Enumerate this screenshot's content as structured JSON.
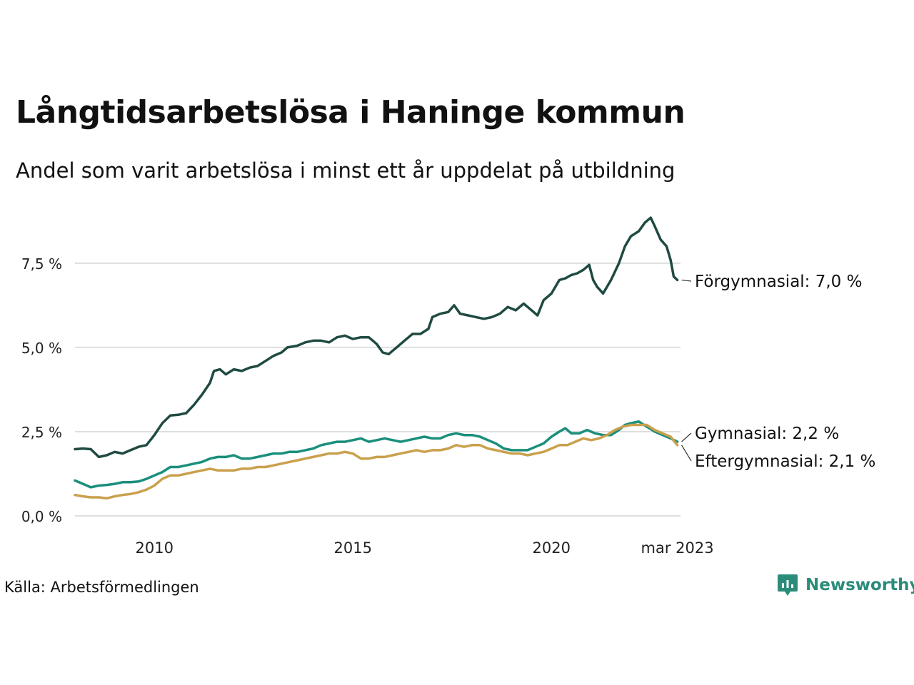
{
  "title": "Långtidsarbetslösa i Haninge kommun",
  "subtitle": "Andel som varit arbetslösa i minst ett år uppdelat på utbildning",
  "source": "Källa: Arbetsförmedlingen",
  "brand": {
    "name": "Newsworthy",
    "icon": "newsworthy-logo-icon",
    "color": "#2c8c7a"
  },
  "chart_data": {
    "type": "line",
    "ylim": [
      0,
      9
    ],
    "xlim": [
      2008.0,
      2023.25
    ],
    "yticks": [
      {
        "value": 0.0,
        "label": "0,0 %"
      },
      {
        "value": 2.5,
        "label": "2,5 %"
      },
      {
        "value": 5.0,
        "label": "5,0 %"
      },
      {
        "value": 7.5,
        "label": "7,5 %"
      }
    ],
    "xticks": [
      {
        "value": 2010.0,
        "label": "2010"
      },
      {
        "value": 2015.0,
        "label": "2015"
      },
      {
        "value": 2020.0,
        "label": "2020"
      },
      {
        "value": 2023.17,
        "label": "mar 2023"
      }
    ],
    "grid": true,
    "legend": "end-of-line labels",
    "series": [
      {
        "name": "Förgymnasial",
        "label": "Förgymnasial: 7,0 %",
        "color": "#1f4a42",
        "points": [
          [
            2008.0,
            1.98
          ],
          [
            2008.2,
            2.0
          ],
          [
            2008.4,
            1.98
          ],
          [
            2008.6,
            1.75
          ],
          [
            2008.8,
            1.8
          ],
          [
            2009.0,
            1.9
          ],
          [
            2009.2,
            1.85
          ],
          [
            2009.4,
            1.95
          ],
          [
            2009.6,
            2.05
          ],
          [
            2009.8,
            2.1
          ],
          [
            2010.0,
            2.4
          ],
          [
            2010.2,
            2.75
          ],
          [
            2010.4,
            2.98
          ],
          [
            2010.6,
            3.0
          ],
          [
            2010.8,
            3.05
          ],
          [
            2011.0,
            3.3
          ],
          [
            2011.2,
            3.6
          ],
          [
            2011.4,
            3.95
          ],
          [
            2011.5,
            4.3
          ],
          [
            2011.65,
            4.35
          ],
          [
            2011.8,
            4.2
          ],
          [
            2012.0,
            4.35
          ],
          [
            2012.2,
            4.3
          ],
          [
            2012.4,
            4.4
          ],
          [
            2012.6,
            4.45
          ],
          [
            2012.8,
            4.6
          ],
          [
            2013.0,
            4.75
          ],
          [
            2013.2,
            4.85
          ],
          [
            2013.35,
            5.0
          ],
          [
            2013.6,
            5.05
          ],
          [
            2013.8,
            5.15
          ],
          [
            2014.0,
            5.2
          ],
          [
            2014.2,
            5.2
          ],
          [
            2014.4,
            5.15
          ],
          [
            2014.6,
            5.3
          ],
          [
            2014.8,
            5.35
          ],
          [
            2015.0,
            5.25
          ],
          [
            2015.2,
            5.3
          ],
          [
            2015.4,
            5.3
          ],
          [
            2015.6,
            5.1
          ],
          [
            2015.75,
            4.85
          ],
          [
            2015.9,
            4.8
          ],
          [
            2016.1,
            5.0
          ],
          [
            2016.3,
            5.2
          ],
          [
            2016.5,
            5.4
          ],
          [
            2016.7,
            5.4
          ],
          [
            2016.9,
            5.55
          ],
          [
            2017.0,
            5.9
          ],
          [
            2017.2,
            6.0
          ],
          [
            2017.4,
            6.05
          ],
          [
            2017.55,
            6.25
          ],
          [
            2017.7,
            6.0
          ],
          [
            2017.9,
            5.95
          ],
          [
            2018.1,
            5.9
          ],
          [
            2018.3,
            5.85
          ],
          [
            2018.5,
            5.9
          ],
          [
            2018.7,
            6.0
          ],
          [
            2018.9,
            6.2
          ],
          [
            2019.1,
            6.1
          ],
          [
            2019.3,
            6.3
          ],
          [
            2019.5,
            6.1
          ],
          [
            2019.65,
            5.95
          ],
          [
            2019.8,
            6.4
          ],
          [
            2020.0,
            6.6
          ],
          [
            2020.2,
            7.0
          ],
          [
            2020.35,
            7.05
          ],
          [
            2020.5,
            7.15
          ],
          [
            2020.65,
            7.2
          ],
          [
            2020.8,
            7.3
          ],
          [
            2020.95,
            7.45
          ],
          [
            2021.05,
            7.0
          ],
          [
            2021.15,
            6.8
          ],
          [
            2021.3,
            6.6
          ],
          [
            2021.5,
            7.0
          ],
          [
            2021.7,
            7.5
          ],
          [
            2021.85,
            8.0
          ],
          [
            2022.0,
            8.3
          ],
          [
            2022.2,
            8.45
          ],
          [
            2022.35,
            8.7
          ],
          [
            2022.5,
            8.85
          ],
          [
            2022.6,
            8.6
          ],
          [
            2022.75,
            8.2
          ],
          [
            2022.9,
            8.0
          ],
          [
            2023.0,
            7.6
          ],
          [
            2023.08,
            7.1
          ],
          [
            2023.17,
            7.0
          ]
        ]
      },
      {
        "name": "Gymnasial",
        "label": "Gymnasial: 2,2 %",
        "color": "#1a8f7c",
        "points": [
          [
            2008.0,
            1.05
          ],
          [
            2008.2,
            0.95
          ],
          [
            2008.4,
            0.85
          ],
          [
            2008.6,
            0.9
          ],
          [
            2008.8,
            0.92
          ],
          [
            2009.0,
            0.95
          ],
          [
            2009.2,
            1.0
          ],
          [
            2009.4,
            1.0
          ],
          [
            2009.6,
            1.02
          ],
          [
            2009.8,
            1.1
          ],
          [
            2010.0,
            1.2
          ],
          [
            2010.2,
            1.3
          ],
          [
            2010.4,
            1.45
          ],
          [
            2010.6,
            1.45
          ],
          [
            2010.8,
            1.5
          ],
          [
            2011.0,
            1.55
          ],
          [
            2011.2,
            1.6
          ],
          [
            2011.4,
            1.7
          ],
          [
            2011.6,
            1.75
          ],
          [
            2011.8,
            1.75
          ],
          [
            2012.0,
            1.8
          ],
          [
            2012.2,
            1.7
          ],
          [
            2012.4,
            1.7
          ],
          [
            2012.6,
            1.75
          ],
          [
            2012.8,
            1.8
          ],
          [
            2013.0,
            1.85
          ],
          [
            2013.2,
            1.85
          ],
          [
            2013.4,
            1.9
          ],
          [
            2013.6,
            1.9
          ],
          [
            2013.8,
            1.95
          ],
          [
            2014.0,
            2.0
          ],
          [
            2014.2,
            2.1
          ],
          [
            2014.4,
            2.15
          ],
          [
            2014.6,
            2.2
          ],
          [
            2014.8,
            2.2
          ],
          [
            2015.0,
            2.25
          ],
          [
            2015.2,
            2.3
          ],
          [
            2015.4,
            2.2
          ],
          [
            2015.6,
            2.25
          ],
          [
            2015.8,
            2.3
          ],
          [
            2016.0,
            2.25
          ],
          [
            2016.2,
            2.2
          ],
          [
            2016.4,
            2.25
          ],
          [
            2016.6,
            2.3
          ],
          [
            2016.8,
            2.35
          ],
          [
            2017.0,
            2.3
          ],
          [
            2017.2,
            2.3
          ],
          [
            2017.4,
            2.4
          ],
          [
            2017.6,
            2.45
          ],
          [
            2017.8,
            2.4
          ],
          [
            2018.0,
            2.4
          ],
          [
            2018.2,
            2.35
          ],
          [
            2018.4,
            2.25
          ],
          [
            2018.6,
            2.15
          ],
          [
            2018.8,
            2.0
          ],
          [
            2019.0,
            1.95
          ],
          [
            2019.2,
            1.95
          ],
          [
            2019.4,
            1.95
          ],
          [
            2019.6,
            2.05
          ],
          [
            2019.8,
            2.15
          ],
          [
            2020.0,
            2.35
          ],
          [
            2020.2,
            2.5
          ],
          [
            2020.35,
            2.6
          ],
          [
            2020.5,
            2.45
          ],
          [
            2020.7,
            2.45
          ],
          [
            2020.9,
            2.55
          ],
          [
            2021.1,
            2.45
          ],
          [
            2021.3,
            2.4
          ],
          [
            2021.5,
            2.4
          ],
          [
            2021.7,
            2.55
          ],
          [
            2021.85,
            2.7
          ],
          [
            2022.0,
            2.75
          ],
          [
            2022.2,
            2.8
          ],
          [
            2022.4,
            2.65
          ],
          [
            2022.6,
            2.5
          ],
          [
            2022.8,
            2.4
          ],
          [
            2023.0,
            2.3
          ],
          [
            2023.17,
            2.2
          ]
        ]
      },
      {
        "name": "Eftergymnasial",
        "label": "Eftergymnasial: 2,1 %",
        "color": "#c9a04d",
        "points": [
          [
            2008.0,
            0.62
          ],
          [
            2008.2,
            0.58
          ],
          [
            2008.4,
            0.55
          ],
          [
            2008.6,
            0.55
          ],
          [
            2008.8,
            0.52
          ],
          [
            2009.0,
            0.58
          ],
          [
            2009.2,
            0.62
          ],
          [
            2009.4,
            0.65
          ],
          [
            2009.6,
            0.7
          ],
          [
            2009.8,
            0.78
          ],
          [
            2010.0,
            0.9
          ],
          [
            2010.2,
            1.1
          ],
          [
            2010.4,
            1.2
          ],
          [
            2010.6,
            1.2
          ],
          [
            2010.8,
            1.25
          ],
          [
            2011.0,
            1.3
          ],
          [
            2011.2,
            1.35
          ],
          [
            2011.4,
            1.4
          ],
          [
            2011.6,
            1.35
          ],
          [
            2011.8,
            1.35
          ],
          [
            2012.0,
            1.35
          ],
          [
            2012.2,
            1.4
          ],
          [
            2012.4,
            1.4
          ],
          [
            2012.6,
            1.45
          ],
          [
            2012.8,
            1.45
          ],
          [
            2013.0,
            1.5
          ],
          [
            2013.2,
            1.55
          ],
          [
            2013.4,
            1.6
          ],
          [
            2013.6,
            1.65
          ],
          [
            2013.8,
            1.7
          ],
          [
            2014.0,
            1.75
          ],
          [
            2014.2,
            1.8
          ],
          [
            2014.4,
            1.85
          ],
          [
            2014.6,
            1.85
          ],
          [
            2014.8,
            1.9
          ],
          [
            2015.0,
            1.85
          ],
          [
            2015.2,
            1.7
          ],
          [
            2015.4,
            1.7
          ],
          [
            2015.6,
            1.75
          ],
          [
            2015.8,
            1.75
          ],
          [
            2016.0,
            1.8
          ],
          [
            2016.2,
            1.85
          ],
          [
            2016.4,
            1.9
          ],
          [
            2016.6,
            1.95
          ],
          [
            2016.8,
            1.9
          ],
          [
            2017.0,
            1.95
          ],
          [
            2017.2,
            1.95
          ],
          [
            2017.4,
            2.0
          ],
          [
            2017.6,
            2.1
          ],
          [
            2017.8,
            2.05
          ],
          [
            2018.0,
            2.1
          ],
          [
            2018.2,
            2.1
          ],
          [
            2018.4,
            2.0
          ],
          [
            2018.6,
            1.95
          ],
          [
            2018.8,
            1.9
          ],
          [
            2019.0,
            1.85
          ],
          [
            2019.2,
            1.85
          ],
          [
            2019.4,
            1.8
          ],
          [
            2019.6,
            1.85
          ],
          [
            2019.8,
            1.9
          ],
          [
            2020.0,
            2.0
          ],
          [
            2020.2,
            2.1
          ],
          [
            2020.4,
            2.1
          ],
          [
            2020.6,
            2.2
          ],
          [
            2020.8,
            2.3
          ],
          [
            2021.0,
            2.25
          ],
          [
            2021.2,
            2.3
          ],
          [
            2021.4,
            2.4
          ],
          [
            2021.6,
            2.55
          ],
          [
            2021.8,
            2.65
          ],
          [
            2022.0,
            2.7
          ],
          [
            2022.2,
            2.7
          ],
          [
            2022.4,
            2.7
          ],
          [
            2022.6,
            2.55
          ],
          [
            2022.8,
            2.45
          ],
          [
            2023.0,
            2.35
          ],
          [
            2023.17,
            2.1
          ]
        ]
      }
    ]
  }
}
